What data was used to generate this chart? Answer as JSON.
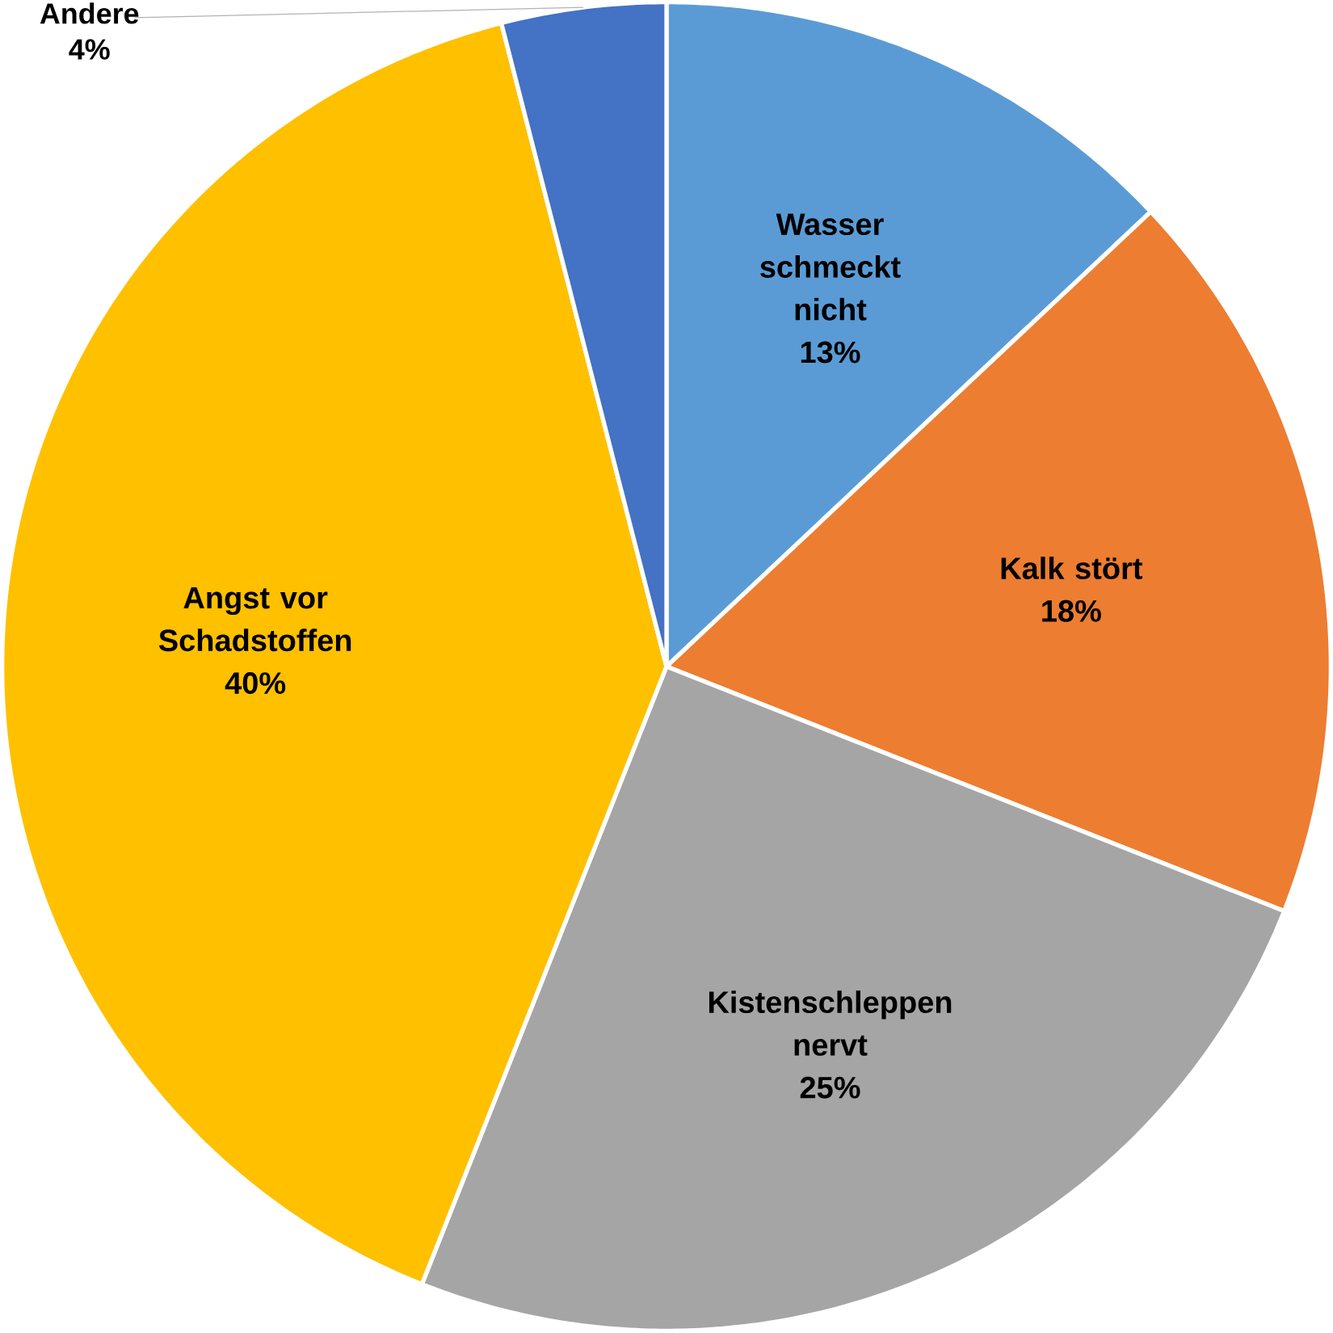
{
  "chart_data": {
    "type": "pie",
    "categories": [
      "Wasser schmeckt nicht",
      "Kalk stört",
      "Kistenschleppen nervt",
      "Angst vor Schadstoffen",
      "Andere"
    ],
    "values": [
      13,
      18,
      25,
      40,
      4
    ],
    "value_labels": [
      "13%",
      "18%",
      "25%",
      "40%",
      "4%"
    ],
    "colors": [
      "#5b9bd5",
      "#ed7d31",
      "#a5a5a5",
      "#ffc000",
      "#4472c4"
    ]
  }
}
